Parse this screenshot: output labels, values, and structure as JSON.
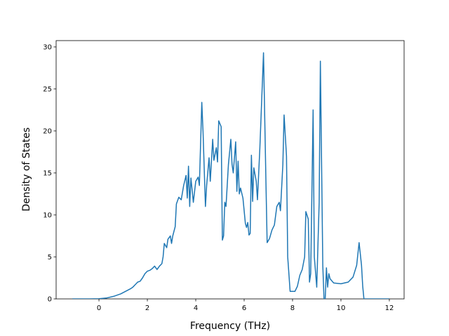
{
  "chart_data": {
    "type": "line",
    "xlabel": "Frequency (THz)",
    "ylabel": "Density of States",
    "xlim": [
      -1.77,
      12.61
    ],
    "ylim": [
      0,
      30.75
    ],
    "xticks": [
      0,
      2,
      4,
      6,
      8,
      10,
      12
    ],
    "yticks": [
      0,
      5,
      10,
      15,
      20,
      25,
      30
    ],
    "series": [
      {
        "color": "#1f77b4",
        "x": [
          -1.1,
          -0.5,
          0,
          0.3,
          0.6,
          0.9,
          1.1,
          1.3,
          1.4,
          1.5,
          1.6,
          1.7,
          1.8,
          1.9,
          2.0,
          2.1,
          2.2,
          2.3,
          2.4,
          2.5,
          2.6,
          2.65,
          2.7,
          2.8,
          2.85,
          2.95,
          3.0,
          3.05,
          3.15,
          3.2,
          3.3,
          3.4,
          3.5,
          3.6,
          3.65,
          3.7,
          3.75,
          3.8,
          3.9,
          4.0,
          4.1,
          4.15,
          4.25,
          4.3,
          4.4,
          4.45,
          4.55,
          4.6,
          4.7,
          4.75,
          4.85,
          4.9,
          4.95,
          5.05,
          5.1,
          5.15,
          5.2,
          5.25,
          5.35,
          5.45,
          5.5,
          5.55,
          5.65,
          5.7,
          5.75,
          5.8,
          5.85,
          5.95,
          6.05,
          6.1,
          6.15,
          6.2,
          6.25,
          6.3,
          6.35,
          6.4,
          6.5,
          6.55,
          6.65,
          6.8,
          6.9,
          6.95,
          7.05,
          7.15,
          7.25,
          7.35,
          7.45,
          7.5,
          7.6,
          7.65,
          7.75,
          7.8,
          7.9,
          8.1,
          8.2,
          8.3,
          8.4,
          8.5,
          8.55,
          8.65,
          8.7,
          8.75,
          8.85,
          8.9,
          9.0,
          9.1,
          9.15,
          9.25,
          9.3,
          9.35,
          9.4,
          9.45,
          9.5,
          9.55,
          9.7,
          10.0,
          10.3,
          10.5,
          10.65,
          10.75,
          10.85,
          10.9,
          10.95,
          11.5,
          12.0
        ],
        "values": [
          0,
          0,
          0.02,
          0.1,
          0.3,
          0.6,
          0.9,
          1.2,
          1.4,
          1.7,
          2.0,
          2.1,
          2.5,
          3.0,
          3.3,
          3.4,
          3.6,
          3.9,
          3.5,
          3.9,
          4.2,
          5.0,
          6.6,
          6.1,
          7.1,
          7.5,
          6.6,
          7.5,
          8.6,
          11.3,
          12.1,
          11.8,
          13.5,
          14.7,
          12.0,
          15.8,
          11.0,
          14.4,
          11.5,
          14.0,
          14.5,
          13.5,
          23.4,
          20.0,
          11.0,
          13.5,
          16.8,
          14.0,
          19.0,
          16.5,
          18.0,
          16.3,
          21.2,
          20.5,
          7.0,
          7.5,
          11.5,
          11.0,
          16.0,
          19.0,
          16.0,
          15.0,
          18.7,
          12.8,
          16.4,
          12.5,
          13.2,
          12.0,
          9.0,
          8.5,
          9.1,
          7.6,
          7.8,
          17.1,
          11.6,
          15.6,
          14.0,
          11.8,
          18.0,
          29.3,
          14.0,
          6.7,
          7.2,
          8.2,
          8.8,
          11.0,
          11.5,
          10.5,
          16.0,
          21.9,
          17.0,
          5.0,
          0.9,
          0.9,
          1.5,
          2.8,
          3.5,
          5.0,
          10.4,
          9.5,
          2.0,
          3.0,
          22.5,
          5.0,
          1.4,
          11.5,
          28.3,
          4.0,
          0,
          0,
          3.7,
          1.4,
          3.0,
          2.4,
          1.9,
          1.8,
          2.0,
          2.6,
          4.0,
          6.7,
          4.0,
          1.5,
          0,
          0,
          0
        ]
      }
    ]
  }
}
